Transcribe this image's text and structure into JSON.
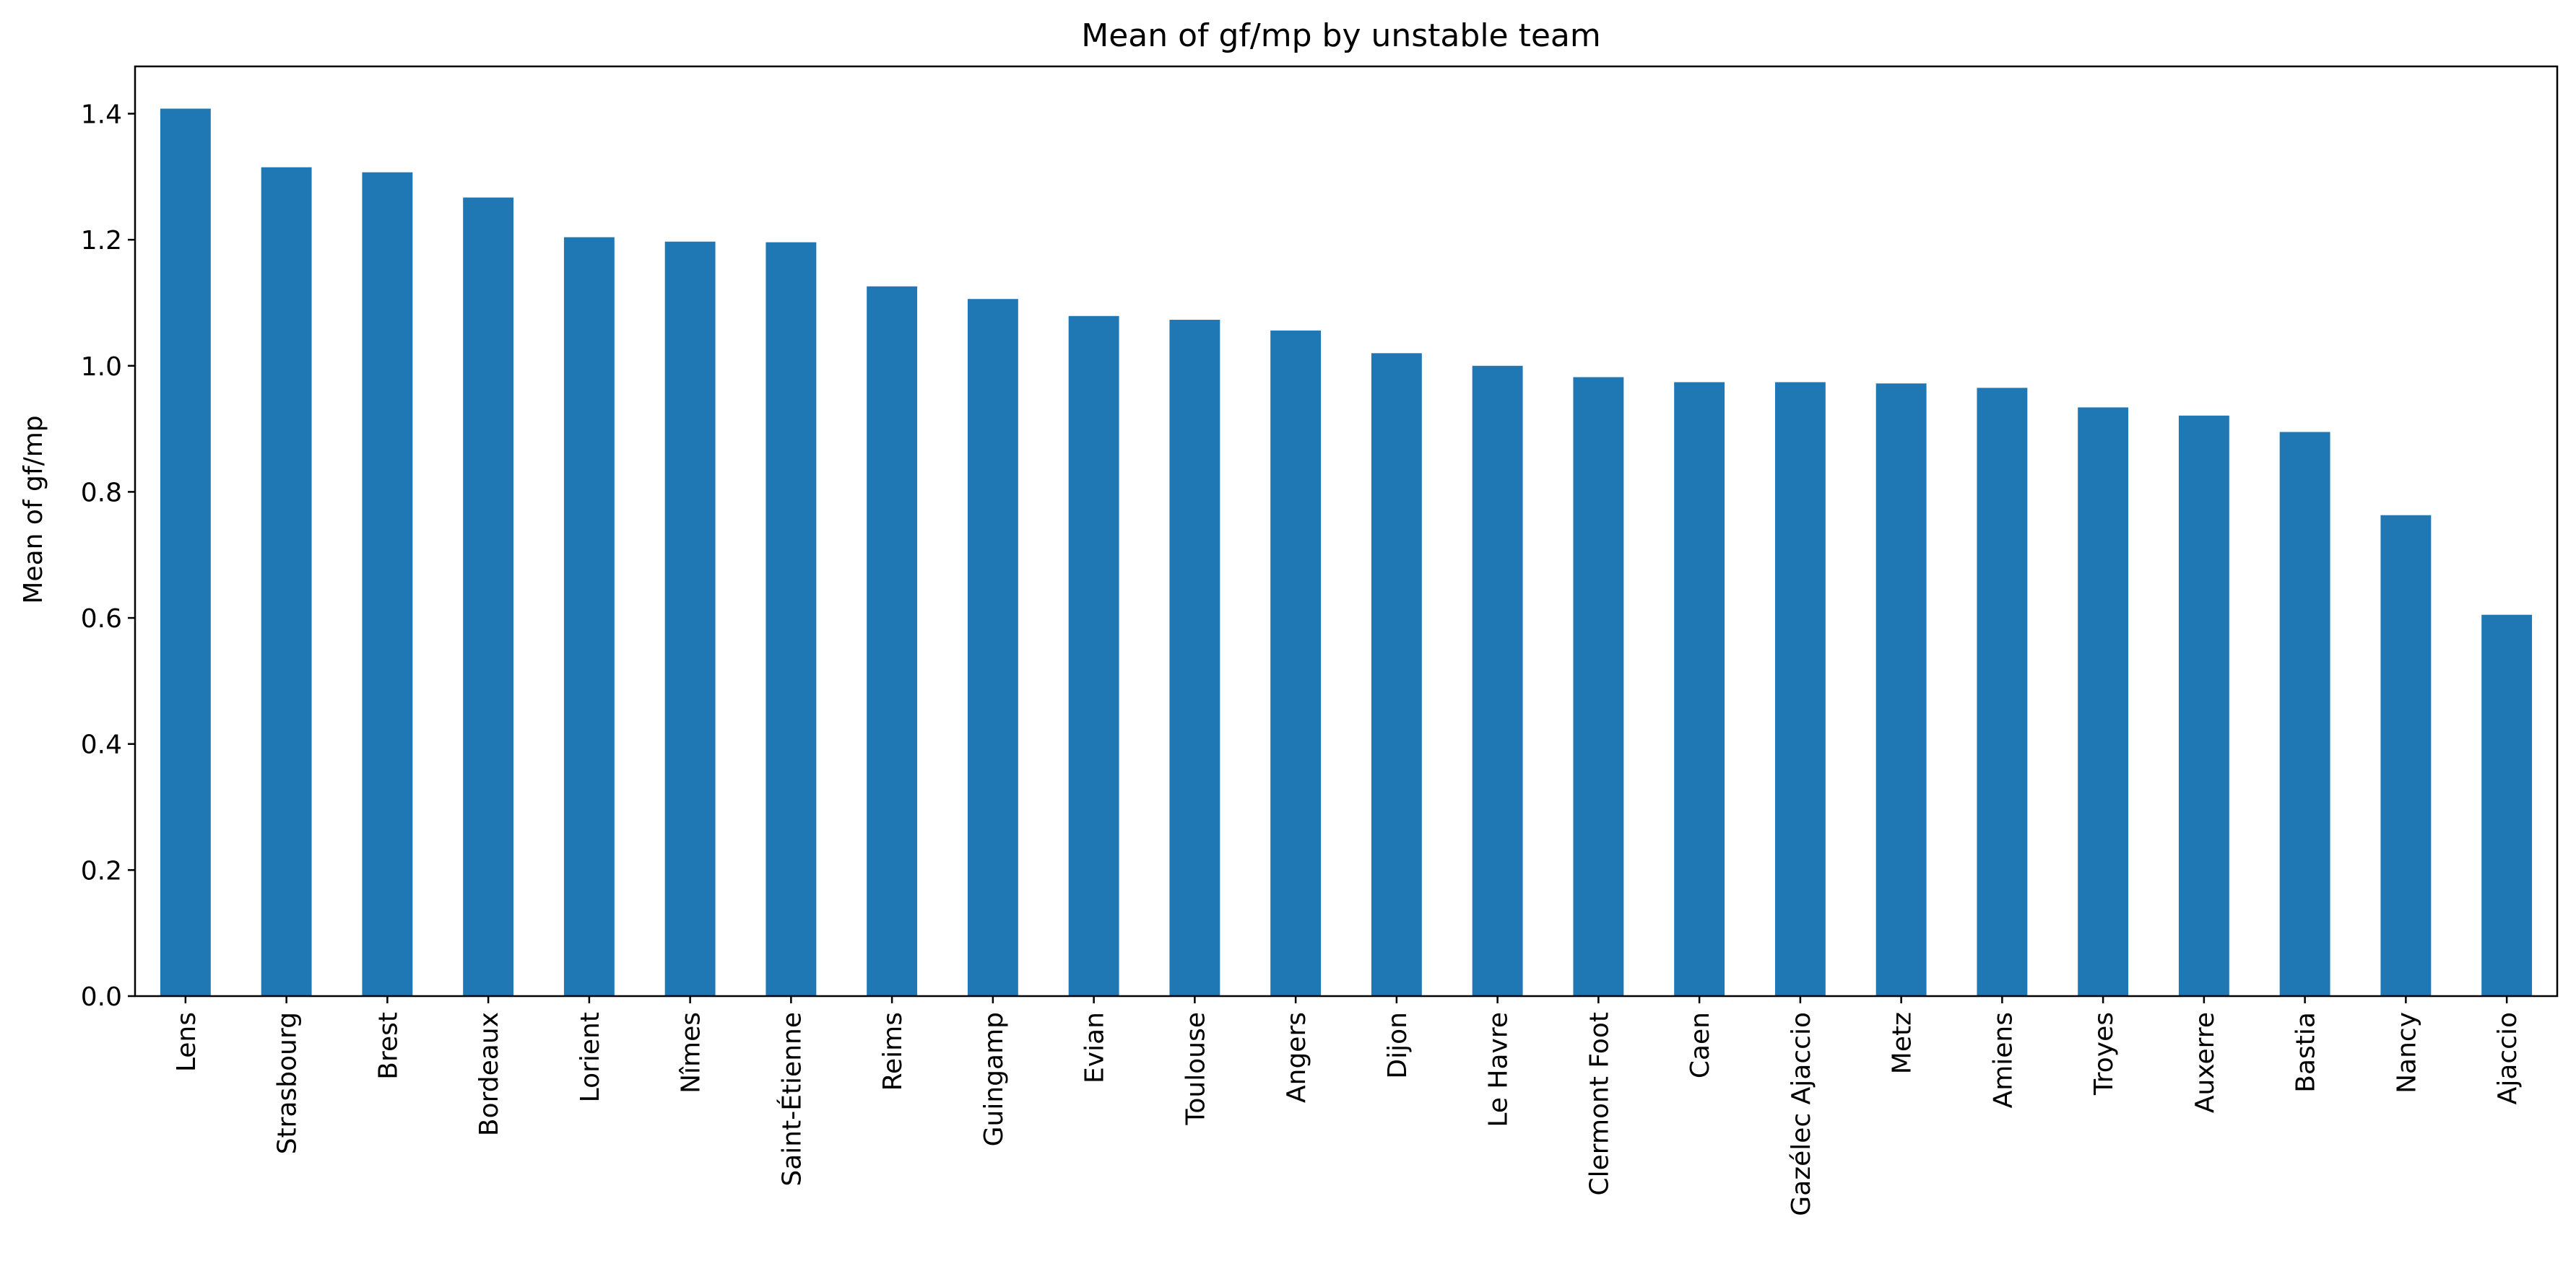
{
  "chart_data": {
    "type": "bar",
    "title": "Mean of gf/mp by unstable team",
    "xlabel": "",
    "ylabel": "Mean of gf/mp",
    "ylim": [
      0,
      1.475
    ],
    "yticks": [
      0.0,
      0.2,
      0.4,
      0.6,
      0.8,
      1.0,
      1.2,
      1.4
    ],
    "ytick_labels": [
      "0.0",
      "0.2",
      "0.4",
      "0.6",
      "0.8",
      "1.0",
      "1.2",
      "1.4"
    ],
    "grid": false,
    "legend": "none",
    "bar_color": "#1f77b4",
    "categories": [
      "Lens",
      "Strasbourg",
      "Brest",
      "Bordeaux",
      "Lorient",
      "Nîmes",
      "Saint-Étienne",
      "Reims",
      "Guingamp",
      "Evian",
      "Toulouse",
      "Angers",
      "Dijon",
      "Le Havre",
      "Clermont Foot",
      "Caen",
      "Gazélec Ajaccio",
      "Metz",
      "Amiens",
      "Troyes",
      "Auxerre",
      "Bastia",
      "Nancy",
      "Ajaccio"
    ],
    "values": [
      1.408,
      1.315,
      1.307,
      1.267,
      1.204,
      1.197,
      1.196,
      1.126,
      1.106,
      1.079,
      1.073,
      1.056,
      1.02,
      1.0,
      0.982,
      0.974,
      0.974,
      0.972,
      0.965,
      0.934,
      0.921,
      0.895,
      0.763,
      0.605
    ]
  }
}
